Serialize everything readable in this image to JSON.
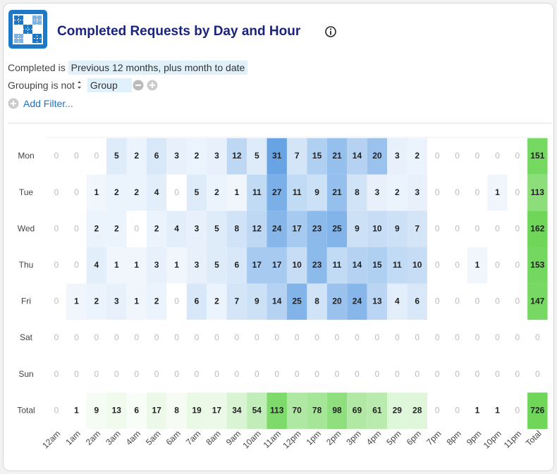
{
  "header": {
    "title": "Completed Requests by Day and Hour"
  },
  "filters": [
    {
      "field": "Completed",
      "operator": "is",
      "value": "Previous 12 months, plus month to date"
    },
    {
      "field": "Grouping",
      "operator": "is not",
      "value": "Group"
    }
  ],
  "add_filter": "Add Filter...",
  "chart_data": {
    "type": "heatmap",
    "categories": [
      "12am",
      "1am",
      "2am",
      "3am",
      "4am",
      "5am",
      "6am",
      "7am",
      "8am",
      "9am",
      "10am",
      "11am",
      "12pm",
      "1pm",
      "2pm",
      "3pm",
      "4pm",
      "5pm",
      "6pm",
      "7pm",
      "8pm",
      "9pm",
      "10pm",
      "11pm",
      "Total"
    ],
    "series": [
      {
        "name": "Mon",
        "values": [
          0,
          0,
          0,
          5,
          2,
          6,
          3,
          2,
          3,
          12,
          5,
          31,
          7,
          15,
          21,
          14,
          20,
          3,
          2,
          0,
          0,
          0,
          0,
          0,
          151
        ]
      },
      {
        "name": "Tue",
        "values": [
          0,
          0,
          1,
          2,
          2,
          4,
          0,
          5,
          2,
          1,
          11,
          27,
          11,
          9,
          21,
          8,
          3,
          2,
          3,
          0,
          0,
          0,
          1,
          0,
          113
        ]
      },
      {
        "name": "Wed",
        "values": [
          0,
          0,
          2,
          2,
          0,
          2,
          4,
          3,
          5,
          8,
          12,
          24,
          17,
          23,
          25,
          9,
          10,
          9,
          7,
          0,
          0,
          0,
          0,
          0,
          162
        ]
      },
      {
        "name": "Thu",
        "values": [
          0,
          0,
          4,
          1,
          1,
          3,
          1,
          3,
          5,
          6,
          17,
          17,
          10,
          23,
          11,
          14,
          15,
          11,
          10,
          0,
          0,
          1,
          0,
          0,
          153
        ]
      },
      {
        "name": "Fri",
        "values": [
          0,
          1,
          2,
          3,
          1,
          2,
          0,
          6,
          2,
          7,
          9,
          14,
          25,
          8,
          20,
          24,
          13,
          4,
          6,
          0,
          0,
          0,
          0,
          0,
          147
        ]
      },
      {
        "name": "Sat",
        "values": [
          0,
          0,
          0,
          0,
          0,
          0,
          0,
          0,
          0,
          0,
          0,
          0,
          0,
          0,
          0,
          0,
          0,
          0,
          0,
          0,
          0,
          0,
          0,
          0,
          0
        ]
      },
      {
        "name": "Sun",
        "values": [
          0,
          0,
          0,
          0,
          0,
          0,
          0,
          0,
          0,
          0,
          0,
          0,
          0,
          0,
          0,
          0,
          0,
          0,
          0,
          0,
          0,
          0,
          0,
          0,
          0
        ]
      },
      {
        "name": "Total",
        "values": [
          0,
          1,
          9,
          13,
          6,
          17,
          8,
          19,
          17,
          34,
          54,
          113,
          70,
          78,
          98,
          69,
          61,
          29,
          28,
          0,
          0,
          1,
          1,
          0,
          726
        ]
      }
    ],
    "color": "#4f95e0",
    "total_color": "#6fd65a"
  }
}
